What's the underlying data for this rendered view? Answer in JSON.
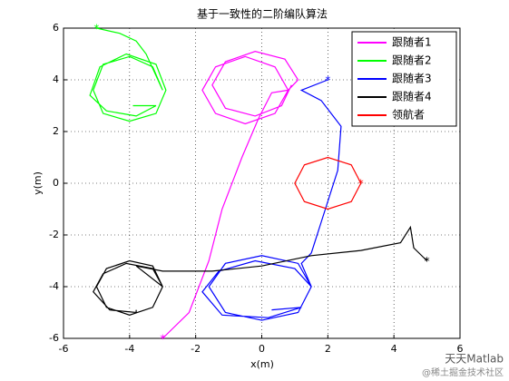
{
  "chart_data": {
    "type": "line",
    "title": "基于一致性的二阶编队算法",
    "x_label": "x(m)",
    "y_label": "y(m)",
    "xlim": [
      -6,
      6
    ],
    "xticks": [
      -6,
      -4,
      -2,
      0,
      2,
      4,
      6
    ],
    "ylim": [
      -6,
      6
    ],
    "yticks": [
      -6,
      -4,
      -2,
      0,
      2,
      4,
      6
    ],
    "grid": true,
    "legend": "northeast",
    "series": [
      {
        "name": "跟随者1",
        "color": "#ff00ff",
        "x": [
          -3,
          -2.2,
          -1.6,
          -1.2,
          -0.6,
          -0.1,
          0.3,
          0.8,
          0.4,
          -0.5,
          -1.4,
          -1.8,
          -1.4,
          -0.5,
          0.4,
          0.8,
          1.1,
          0.7,
          -0.2,
          -1.1,
          -1.5,
          -1.1,
          -0.2,
          0.6,
          0.9
        ],
        "values": [
          -6,
          -5,
          -3,
          -1,
          1,
          2.5,
          3.5,
          3.6,
          4.5,
          4.9,
          4.5,
          3.6,
          2.7,
          2.3,
          2.7,
          3.6,
          4.0,
          4.8,
          5.1,
          4.7,
          3.8,
          2.9,
          2.6,
          3.0,
          3.8
        ]
      },
      {
        "name": "跟随者2",
        "color": "#00ff00",
        "x": [
          -5,
          -4.3,
          -3.8,
          -3.5,
          -3,
          -3.3,
          -4,
          -4.8,
          -5.1,
          -4.8,
          -4,
          -3.2,
          -2.9,
          -3.2,
          -4.1,
          -4.9,
          -5.2,
          -4.7,
          -3.8,
          -3.2,
          -3.9
        ],
        "values": [
          6,
          5.8,
          5.5,
          5.0,
          3.6,
          4.5,
          4.9,
          4.6,
          3.6,
          2.7,
          2.4,
          2.7,
          3.6,
          4.6,
          5.0,
          4.5,
          3.4,
          2.8,
          2.6,
          3.0,
          3.0
        ]
      },
      {
        "name": "跟随者3",
        "color": "#0000ff",
        "x": [
          2,
          1.2,
          1.8,
          2.4,
          2.3,
          1.8,
          1.5,
          1.2,
          1.5,
          1.1,
          0,
          -1.1,
          -1.6,
          -1.1,
          0,
          1.1,
          1.5,
          1.0,
          -0.2,
          -1.3,
          -1.8,
          -1.2,
          0.2,
          1.2,
          0.3
        ],
        "values": [
          4,
          3.6,
          3.2,
          2.2,
          0.5,
          -1.5,
          -2.7,
          -3.1,
          -4,
          -3.1,
          -2.8,
          -3.1,
          -4,
          -5,
          -5.3,
          -5,
          -4,
          -3.3,
          -3.0,
          -3.4,
          -4.2,
          -5.1,
          -5.2,
          -4.8,
          -4.9
        ]
      },
      {
        "name": "跟随者4",
        "color": "#000000",
        "x": [
          5,
          4.6,
          4.5,
          4.2,
          3,
          1.5,
          0,
          -1.5,
          -3,
          -3.8,
          -3,
          -3.3,
          -4,
          -4.7,
          -5,
          -4.7,
          -4,
          -3.3,
          -3,
          -3.3,
          -4.1,
          -4.8,
          -5.1,
          -4.6,
          -3.8,
          -3.8
        ],
        "values": [
          -3,
          -2.5,
          -1.7,
          -2.3,
          -2.6,
          -2.8,
          -3.2,
          -3.4,
          -3.4,
          -3.2,
          -4,
          -3.2,
          -3,
          -3.3,
          -4,
          -4.8,
          -5.1,
          -4.8,
          -4,
          -3.3,
          -3.1,
          -3.5,
          -4.2,
          -4.9,
          -5.0,
          -4.9
        ]
      },
      {
        "name": "领航者",
        "color": "#ff0000",
        "x": [
          3,
          2.71,
          2,
          1.29,
          1,
          1.29,
          2,
          2.71,
          3
        ],
        "values": [
          0,
          0.71,
          1,
          0.71,
          0,
          -0.71,
          -1,
          -0.71,
          0
        ]
      }
    ]
  },
  "watermark": {
    "line1": "天天Matlab",
    "line2": "@稀土掘金技术社区"
  }
}
